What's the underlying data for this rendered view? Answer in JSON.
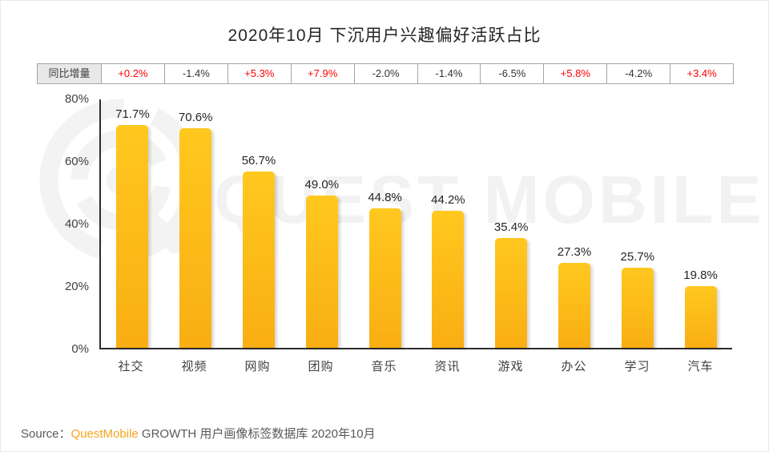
{
  "title": "2020年10月 下沉用户兴趣偏好活跃占比",
  "yoy": {
    "label": "同比增量",
    "values": [
      "+0.2%",
      "-1.4%",
      "+5.3%",
      "+7.9%",
      "-2.0%",
      "-1.4%",
      "-6.5%",
      "+5.8%",
      "-4.2%",
      "+3.4%"
    ]
  },
  "chart_data": {
    "type": "bar",
    "title": "2020年10月 下沉用户兴趣偏好活跃占比",
    "categories": [
      "社交",
      "视频",
      "网购",
      "团购",
      "音乐",
      "资讯",
      "游戏",
      "办公",
      "学习",
      "汽车"
    ],
    "values": [
      71.7,
      70.6,
      56.7,
      49.0,
      44.8,
      44.2,
      35.4,
      27.3,
      25.7,
      19.8
    ],
    "value_labels": [
      "71.7%",
      "70.6%",
      "56.7%",
      "49.0%",
      "44.8%",
      "44.2%",
      "35.4%",
      "27.3%",
      "25.7%",
      "19.8%"
    ],
    "series": [
      {
        "name": "活跃占比",
        "values": [
          71.7,
          70.6,
          56.7,
          49.0,
          44.8,
          44.2,
          35.4,
          27.3,
          25.7,
          19.8
        ]
      },
      {
        "name": "同比增量",
        "values": [
          "+0.2%",
          "-1.4%",
          "+5.3%",
          "+7.9%",
          "-2.0%",
          "-1.4%",
          "-6.5%",
          "+5.8%",
          "-4.2%",
          "+3.4%"
        ]
      }
    ],
    "xlabel": "",
    "ylabel": "",
    "ylim": [
      0,
      80
    ],
    "yticks": [
      80,
      60,
      40,
      20,
      0
    ],
    "ytick_labels": [
      "80%",
      "60%",
      "40%",
      "20%",
      "0%"
    ],
    "grid": false,
    "legend": false
  },
  "watermark": {
    "text": "QUEST MOBILE",
    "logo": "questmobile-logo"
  },
  "source": {
    "prefix": "Source：",
    "brand": "QuestMobile",
    "rest": " GROWTH 用户画像标签数据库 2020年10月"
  },
  "colors": {
    "positive_red": "#ff0000",
    "negative_black": "#333333",
    "bar_gradient_top": "#ffc81f",
    "bar_gradient_bottom": "#f9ae13",
    "brand_orange": "#f7a41c",
    "axis": "#2d2d2d",
    "watermark_grey": "#f2f2f2",
    "table_header_bg": "#e8e8e8",
    "table_border": "#a6a6a6"
  }
}
